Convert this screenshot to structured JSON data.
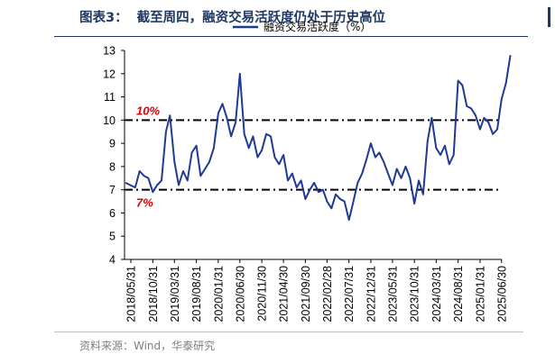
{
  "figure": {
    "number": "图表3：",
    "title": "截至周四，融资交易活跃度仍处于历史高位",
    "source": "资料来源：Wind，华泰研究"
  },
  "colors": {
    "line": "#1f3a93",
    "title": "#1f3864",
    "reference": "#e00000"
  },
  "chart_data": {
    "type": "line",
    "title": "",
    "xlabel": "",
    "ylabel": "",
    "ylim": [
      4,
      13
    ],
    "yticks": [
      4,
      5,
      6,
      7,
      8,
      9,
      10,
      11,
      12,
      13
    ],
    "x_tick_labels": [
      "2018/05/31",
      "2018/10/31",
      "2019/03/31",
      "2019/08/31",
      "2020/01/31",
      "2020/06/30",
      "2020/11/30",
      "2021/04/30",
      "2021/09/30",
      "2022/02/28",
      "2022/07/31",
      "2022/12/31",
      "2023/05/31",
      "2023/10/31",
      "2024/03/31",
      "2024/08/31",
      "2025/01/31",
      "2025/06/30"
    ],
    "grid": false,
    "legend_position": "top",
    "reference_lines": [
      {
        "y": 10,
        "label": "10%",
        "style": "dash-dot",
        "color": "#000000"
      },
      {
        "y": 7,
        "label": "7%",
        "style": "dash-dot",
        "color": "#000000"
      }
    ],
    "series": [
      {
        "name": "融资交易活跃度（%）",
        "x_dates": [
          "2018/05/31",
          "2018/06/30",
          "2018/07/31",
          "2018/08/31",
          "2018/09/30",
          "2018/10/31",
          "2018/11/30",
          "2018/12/31",
          "2019/01/31",
          "2019/02/28",
          "2019/03/31",
          "2019/04/30",
          "2019/05/31",
          "2019/06/30",
          "2019/07/31",
          "2019/08/31",
          "2019/09/30",
          "2019/10/31",
          "2019/11/30",
          "2019/12/31",
          "2020/01/31",
          "2020/02/29",
          "2020/03/31",
          "2020/04/30",
          "2020/05/31",
          "2020/06/30",
          "2020/07/31",
          "2020/08/31",
          "2020/09/30",
          "2020/10/31",
          "2020/11/30",
          "2020/12/31",
          "2021/01/31",
          "2021/02/28",
          "2021/03/31",
          "2021/04/30",
          "2021/05/31",
          "2021/06/30",
          "2021/07/31",
          "2021/08/31",
          "2021/09/30",
          "2021/10/31",
          "2021/11/30",
          "2021/12/31",
          "2022/01/31",
          "2022/02/28",
          "2022/03/31",
          "2022/04/30",
          "2022/05/31",
          "2022/06/30",
          "2022/07/31",
          "2022/08/31",
          "2022/09/30",
          "2022/10/31",
          "2022/11/30",
          "2022/12/31",
          "2023/01/31",
          "2023/02/28",
          "2023/03/31",
          "2023/04/30",
          "2023/05/31",
          "2023/06/30",
          "2023/07/31",
          "2023/08/31",
          "2023/09/30",
          "2023/10/31",
          "2023/11/30",
          "2023/12/31",
          "2024/01/31",
          "2024/02/29",
          "2024/03/31",
          "2024/04/30",
          "2024/05/31",
          "2024/06/30",
          "2024/07/31",
          "2024/08/31",
          "2024/09/30",
          "2024/10/31",
          "2024/11/30",
          "2024/12/31",
          "2025/01/31",
          "2025/02/28",
          "2025/03/31",
          "2025/04/30",
          "2025/05/31",
          "2025/06/30",
          "2025/07/31",
          "2025/08/31"
        ],
        "values": [
          7.3,
          7.1,
          7.8,
          7.6,
          7.5,
          6.9,
          7.2,
          7.4,
          9.5,
          10.2,
          8.2,
          7.2,
          7.8,
          7.4,
          8.6,
          8.9,
          7.6,
          7.9,
          8.2,
          8.8,
          10.3,
          10.7,
          10.1,
          9.3,
          9.9,
          12.0,
          9.4,
          8.8,
          9.3,
          8.4,
          8.7,
          9.4,
          9.3,
          8.4,
          8.1,
          8.5,
          7.4,
          7.7,
          7.1,
          7.4,
          6.6,
          7.0,
          7.3,
          6.9,
          7.0,
          6.5,
          6.2,
          6.8,
          6.6,
          6.5,
          5.7,
          6.5,
          7.3,
          7.7,
          8.3,
          9.0,
          8.4,
          8.6,
          8.2,
          7.7,
          7.2,
          7.9,
          7.5,
          8.0,
          7.5,
          6.4,
          7.4,
          6.8,
          9.1,
          10.1,
          8.8,
          8.5,
          8.9,
          8.1,
          8.5,
          11.7,
          11.5,
          10.6,
          10.5,
          10.2,
          9.6,
          10.1,
          9.9,
          9.4,
          9.6,
          10.9,
          11.6,
          12.8
        ]
      }
    ]
  }
}
